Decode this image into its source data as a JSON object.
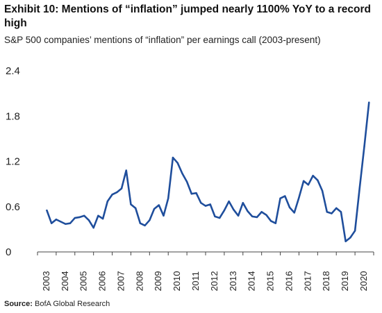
{
  "title": "Exhibit 10: Mentions of “inflation” jumped nearly 1100% YoY to a record high",
  "subtitle": "S&P 500 companies’ mentions of “inflation” per earnings call (2003-present)",
  "source": {
    "label": "Source:",
    "text": "BofA Global Research"
  },
  "colors": {
    "line": "#1f4e9c",
    "axis": "#444444",
    "text": "#222222"
  },
  "chart_data": {
    "type": "line",
    "title": "Exhibit 10: Mentions of “inflation” jumped nearly 1100% YoY to a record high",
    "subtitle": "S&P 500 companies’ mentions of “inflation” per earnings call (2003-present)",
    "xlabel": "",
    "ylabel": "",
    "ylim": [
      0,
      2.4
    ],
    "xlim": [
      2003,
      2021
    ],
    "yticks": [
      0,
      0.6,
      1.2,
      1.8,
      2.4
    ],
    "ytick_labels": [
      "0",
      "0.6",
      "1.2",
      "1.8",
      "2.4"
    ],
    "xticks": [
      "2003",
      "2004",
      "2005",
      "2006",
      "2007",
      "2008",
      "2009",
      "2010",
      "2011",
      "2012",
      "2013",
      "2014",
      "2015",
      "2016",
      "2017",
      "2018",
      "2019",
      "2020"
    ],
    "grid": false,
    "legend": "none",
    "series": [
      {
        "x": [
          2003.5,
          2003.75,
          2004.0,
          2004.25,
          2004.5,
          2004.75,
          2005.0,
          2005.25,
          2005.5,
          2005.75,
          2006.0,
          2006.25,
          2006.5,
          2006.75,
          2007.0,
          2007.25,
          2007.5,
          2007.75,
          2008.0,
          2008.25,
          2008.5,
          2008.75,
          2009.0,
          2009.25,
          2009.5,
          2009.75,
          2010.0,
          2010.25,
          2010.5,
          2010.75,
          2011.0,
          2011.25,
          2011.5,
          2011.75,
          2012.0,
          2012.25,
          2012.5,
          2012.75,
          2013.0,
          2013.25,
          2013.5,
          2013.75,
          2014.0,
          2014.25,
          2014.5,
          2014.75,
          2015.0,
          2015.25,
          2015.5,
          2015.75,
          2016.0,
          2016.25,
          2016.5,
          2016.75,
          2017.0,
          2017.25,
          2017.5,
          2017.75,
          2018.0,
          2018.25,
          2018.5,
          2018.75,
          2019.0,
          2019.25,
          2019.5,
          2019.75,
          2020.0,
          2020.25,
          2020.5,
          2020.75
        ],
        "values": [
          0.55,
          0.38,
          0.43,
          0.4,
          0.37,
          0.38,
          0.45,
          0.46,
          0.48,
          0.42,
          0.32,
          0.48,
          0.44,
          0.67,
          0.76,
          0.79,
          0.84,
          1.08,
          0.63,
          0.58,
          0.38,
          0.35,
          0.42,
          0.57,
          0.62,
          0.48,
          0.71,
          1.25,
          1.18,
          1.04,
          0.93,
          0.77,
          0.78,
          0.65,
          0.61,
          0.63,
          0.47,
          0.45,
          0.55,
          0.67,
          0.56,
          0.48,
          0.65,
          0.54,
          0.47,
          0.46,
          0.53,
          0.49,
          0.41,
          0.38,
          0.71,
          0.74,
          0.59,
          0.52,
          0.72,
          0.94,
          0.89,
          1.01,
          0.95,
          0.81,
          0.53,
          0.51,
          0.58,
          0.53,
          0.14,
          0.19,
          0.28,
          0.85,
          1.4,
          1.98
        ]
      }
    ]
  }
}
